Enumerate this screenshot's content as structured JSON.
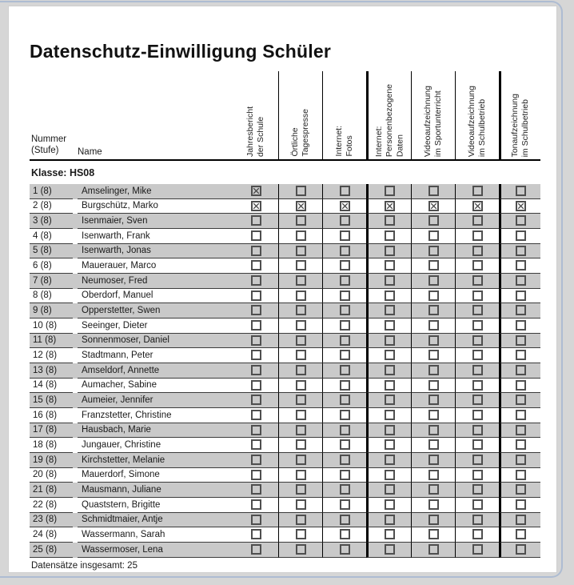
{
  "document": {
    "title": "Datenschutz-Einwilligung Schüler",
    "group_label": "Klasse: HS08",
    "footer": "Datensätze insgesamt: 25"
  },
  "table": {
    "left_headers": {
      "nummer_line1": "Nummer",
      "nummer_line2": "(Stufe)",
      "name": "Name"
    },
    "columns": [
      {
        "lines": [
          "Jahresbericht",
          "der Schule"
        ]
      },
      {
        "lines": [
          "Örtliche",
          "Tagespresse"
        ]
      },
      {
        "lines": [
          "Internet:",
          "Fotos"
        ]
      },
      {
        "lines": [
          "Internet:",
          "Personenbezogene",
          "Daten"
        ]
      },
      {
        "lines": [
          "Videoaufzeichnung",
          "im Sportunterricht"
        ]
      },
      {
        "lines": [
          "Videoaufzeichnung",
          "im Schulbetrieb"
        ]
      },
      {
        "lines": [
          "Tonaufzeichnung",
          "im Schulbetrieb"
        ]
      }
    ],
    "rows": [
      {
        "num": "1 (8)",
        "name": "Amselinger, Mike",
        "checks": [
          true,
          false,
          false,
          false,
          false,
          false,
          false
        ]
      },
      {
        "num": "2 (8)",
        "name": "Burgschütz, Marko",
        "checks": [
          true,
          true,
          true,
          true,
          true,
          true,
          true
        ]
      },
      {
        "num": "3 (8)",
        "name": "Isenmaier, Sven",
        "checks": [
          false,
          false,
          false,
          false,
          false,
          false,
          false
        ]
      },
      {
        "num": "4 (8)",
        "name": "Isenwarth, Frank",
        "checks": [
          false,
          false,
          false,
          false,
          false,
          false,
          false
        ]
      },
      {
        "num": "5 (8)",
        "name": "Isenwarth, Jonas",
        "checks": [
          false,
          false,
          false,
          false,
          false,
          false,
          false
        ]
      },
      {
        "num": "6 (8)",
        "name": "Mauerauer, Marco",
        "checks": [
          false,
          false,
          false,
          false,
          false,
          false,
          false
        ]
      },
      {
        "num": "7 (8)",
        "name": "Neumoser, Fred",
        "checks": [
          false,
          false,
          false,
          false,
          false,
          false,
          false
        ]
      },
      {
        "num": "8 (8)",
        "name": "Oberdorf, Manuel",
        "checks": [
          false,
          false,
          false,
          false,
          false,
          false,
          false
        ]
      },
      {
        "num": "9 (8)",
        "name": "Opperstetter, Swen",
        "checks": [
          false,
          false,
          false,
          false,
          false,
          false,
          false
        ]
      },
      {
        "num": "10 (8)",
        "name": "Seeinger, Dieter",
        "checks": [
          false,
          false,
          false,
          false,
          false,
          false,
          false
        ]
      },
      {
        "num": "11 (8)",
        "name": "Sonnenmoser, Daniel",
        "checks": [
          false,
          false,
          false,
          false,
          false,
          false,
          false
        ]
      },
      {
        "num": "12 (8)",
        "name": "Stadtmann, Peter",
        "checks": [
          false,
          false,
          false,
          false,
          false,
          false,
          false
        ]
      },
      {
        "num": "13 (8)",
        "name": "Amseldorf, Annette",
        "checks": [
          false,
          false,
          false,
          false,
          false,
          false,
          false
        ]
      },
      {
        "num": "14 (8)",
        "name": "Aumacher, Sabine",
        "checks": [
          false,
          false,
          false,
          false,
          false,
          false,
          false
        ]
      },
      {
        "num": "15 (8)",
        "name": "Aumeier, Jennifer",
        "checks": [
          false,
          false,
          false,
          false,
          false,
          false,
          false
        ]
      },
      {
        "num": "16 (8)",
        "name": "Franzstetter, Christine",
        "checks": [
          false,
          false,
          false,
          false,
          false,
          false,
          false
        ]
      },
      {
        "num": "17 (8)",
        "name": "Hausbach, Marie",
        "checks": [
          false,
          false,
          false,
          false,
          false,
          false,
          false
        ]
      },
      {
        "num": "18 (8)",
        "name": "Jungauer, Christine",
        "checks": [
          false,
          false,
          false,
          false,
          false,
          false,
          false
        ]
      },
      {
        "num": "19 (8)",
        "name": "Kirchstetter, Melanie",
        "checks": [
          false,
          false,
          false,
          false,
          false,
          false,
          false
        ]
      },
      {
        "num": "20 (8)",
        "name": "Mauerdorf, Simone",
        "checks": [
          false,
          false,
          false,
          false,
          false,
          false,
          false
        ]
      },
      {
        "num": "21 (8)",
        "name": "Mausmann, Juliane",
        "checks": [
          false,
          false,
          false,
          false,
          false,
          false,
          false
        ]
      },
      {
        "num": "22 (8)",
        "name": "Quaststern, Brigitte",
        "checks": [
          false,
          false,
          false,
          false,
          false,
          false,
          false
        ]
      },
      {
        "num": "23 (8)",
        "name": "Schmidtmaier, Antje",
        "checks": [
          false,
          false,
          false,
          false,
          false,
          false,
          false
        ]
      },
      {
        "num": "24 (8)",
        "name": "Wassermann, Sarah",
        "checks": [
          false,
          false,
          false,
          false,
          false,
          false,
          false
        ]
      },
      {
        "num": "25 (8)",
        "name": "Wassermoser, Lena",
        "checks": [
          false,
          false,
          false,
          false,
          false,
          false,
          false
        ]
      }
    ]
  },
  "colors": {
    "row_stripe": "#c9c9c9",
    "page_background": "#ffffff",
    "surround_background": "#d6d6d6",
    "grid_line": "#000000"
  }
}
